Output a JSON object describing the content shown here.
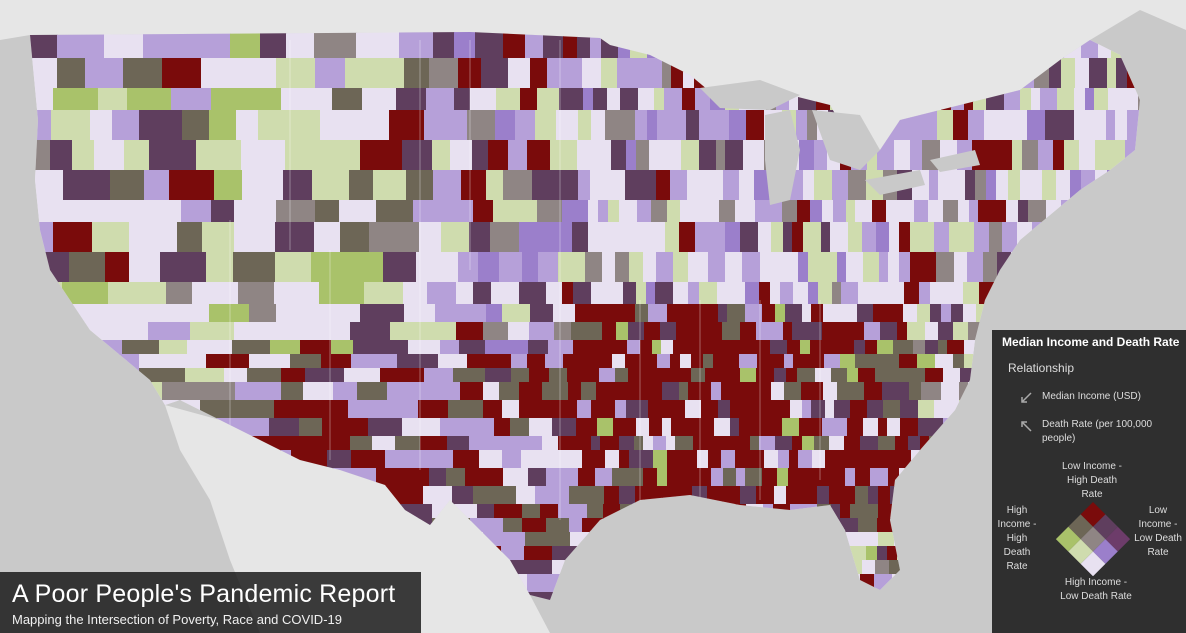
{
  "map": {
    "land_color": "#ececec",
    "water_color": "#c8c8c8",
    "county_palette": {
      "low_income_high_death": "#7a0b0b",
      "mid_high": "#5f3e5e",
      "grey_mid": "#8f8584",
      "olive_dark": "#6d6656",
      "green_low_death": "#a9c26a",
      "light_green": "#cfdcae",
      "light_purple": "#b6a0d9",
      "mid_purple": "#9b7fcb",
      "very_light": "#e8e1f1",
      "pale_lilac": "#d7cde8"
    }
  },
  "title_panel": {
    "title": "A Poor People's Pandemic Report",
    "subtitle": "Mapping the Intersection of Poverty, Race and COVID-19"
  },
  "legend": {
    "title": "Median Income and Death Rate",
    "subtitle": "Relationship",
    "income_axis": "Median Income (USD)",
    "death_axis": "Death Rate (per 100,000 people)",
    "top_label": "Low Income - High Death Rate",
    "left_label": "High Income - High Death Rate",
    "right_label": "Low Income - Low Death Rate",
    "bottom_label": "High Income - Low Death Rate",
    "grid_colors": [
      "#7a0b0b",
      "#5f3e5e",
      "#6d3c6a",
      "#6d6656",
      "#8f8584",
      "#9b7fcb",
      "#a9c26a",
      "#cfdcae",
      "#e8e1f1"
    ]
  }
}
